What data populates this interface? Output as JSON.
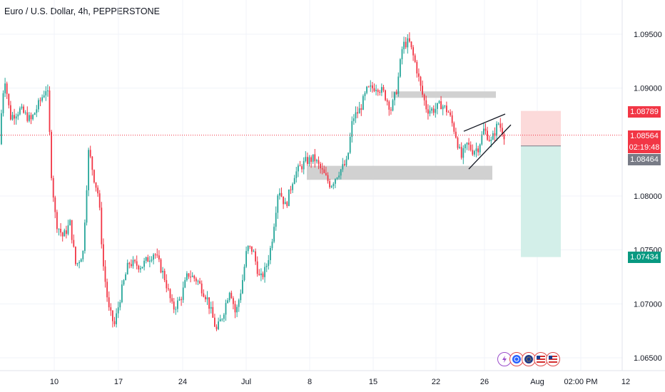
{
  "header": {
    "title": "Euro / U.S. Dollar, 4h, PEPPERSTONE"
  },
  "price_axis": {
    "ticks": [
      "1.09500",
      "1.09000",
      "1.08000",
      "1.07500",
      "1.07000",
      "1.06500"
    ]
  },
  "time_axis": {
    "ticks": [
      "10",
      "17",
      "24",
      "Jul",
      "8",
      "15",
      "22",
      "26",
      "Aug",
      "02:00 PM",
      "12"
    ]
  },
  "badges": {
    "stop": "1.08789",
    "current_price": "1.08564",
    "countdown": "02:19:48",
    "entry": "1.08464",
    "target": "1.07434"
  },
  "colors": {
    "up": "#26a69a",
    "down": "#f23645",
    "stop_zone": "#fcdada",
    "target_zone": "#d3efe9",
    "zone_box": "#cfcfcf",
    "current_line": "#f23645"
  },
  "event_icons": [
    "lightning-icon",
    "event-icon",
    "event-icon",
    "us-flag-icon",
    "us-flag-icon"
  ],
  "chart_data": {
    "type": "candlestick",
    "symbol": "Euro / U.S. Dollar",
    "timeframe": "4h",
    "source": "PEPPERSTONE",
    "x_ticks": [
      "10",
      "17",
      "24",
      "Jul",
      "8",
      "15",
      "22",
      "26",
      "Aug",
      "02:00 PM",
      "12"
    ],
    "y_ticks": [
      1.095,
      1.09,
      1.08,
      1.075,
      1.07,
      1.065
    ],
    "ylim": [
      1.0645,
      1.0963
    ],
    "path": [
      [
        0,
        1.0848
      ],
      [
        8,
        1.0912
      ],
      [
        16,
        1.0873
      ],
      [
        30,
        1.088
      ],
      [
        45,
        1.087
      ],
      [
        68,
        1.0902
      ],
      [
        74,
        1.0818
      ],
      [
        80,
        1.0776
      ],
      [
        90,
        1.0762
      ],
      [
        100,
        1.0775
      ],
      [
        108,
        1.0735
      ],
      [
        118,
        1.0748
      ],
      [
        126,
        1.0843
      ],
      [
        134,
        1.0815
      ],
      [
        140,
        1.08
      ],
      [
        146,
        1.0738
      ],
      [
        154,
        1.0695
      ],
      [
        162,
        1.068
      ],
      [
        172,
        1.0712
      ],
      [
        182,
        1.0738
      ],
      [
        200,
        1.0735
      ],
      [
        218,
        1.0748
      ],
      [
        232,
        1.0725
      ],
      [
        244,
        1.0695
      ],
      [
        255,
        1.0705
      ],
      [
        265,
        1.0728
      ],
      [
        278,
        1.0722
      ],
      [
        292,
        1.0705
      ],
      [
        305,
        1.0675
      ],
      [
        314,
        1.069
      ],
      [
        324,
        1.0715
      ],
      [
        332,
        1.069
      ],
      [
        340,
        1.0715
      ],
      [
        348,
        1.0752
      ],
      [
        356,
        1.075
      ],
      [
        366,
        1.0722
      ],
      [
        374,
        1.0732
      ],
      [
        382,
        1.0755
      ],
      [
        392,
        1.0808
      ],
      [
        402,
        1.079
      ],
      [
        414,
        1.082
      ],
      [
        430,
        1.0832
      ],
      [
        442,
        1.0835
      ],
      [
        450,
        1.0826
      ],
      [
        465,
        1.081
      ],
      [
        476,
        1.0822
      ],
      [
        488,
        1.0831
      ],
      [
        496,
        1.0872
      ],
      [
        506,
        1.088
      ],
      [
        516,
        1.0898
      ],
      [
        530,
        1.0902
      ],
      [
        540,
        1.0895
      ],
      [
        550,
        1.088
      ],
      [
        558,
        1.09
      ],
      [
        566,
        1.094
      ],
      [
        575,
        1.0943
      ],
      [
        585,
        1.092
      ],
      [
        592,
        1.0898
      ],
      [
        600,
        1.088
      ],
      [
        610,
        1.088
      ],
      [
        620,
        1.0885
      ],
      [
        630,
        1.0878
      ],
      [
        640,
        1.0858
      ],
      [
        648,
        1.0835
      ],
      [
        656,
        1.0848
      ],
      [
        664,
        1.0842
      ],
      [
        672,
        1.0845
      ],
      [
        680,
        1.0862
      ],
      [
        690,
        1.085
      ],
      [
        700,
        1.0868
      ],
      [
        708,
        1.0857
      ]
    ],
    "zones": [
      {
        "price_top": 1.0897,
        "price_bottom": 1.0891
      },
      {
        "price_top": 1.0828,
        "price_bottom": 1.0815
      }
    ],
    "wedge": {
      "upper": [
        [
          650,
          1.086
        ],
        [
          708,
          1.0876
        ]
      ],
      "lower": [
        [
          657,
          1.0825
        ],
        [
          716,
          1.0866
        ]
      ]
    },
    "position": {
      "stop": 1.08789,
      "entry": 1.08464,
      "target": 1.07434,
      "current": 1.08564
    }
  }
}
